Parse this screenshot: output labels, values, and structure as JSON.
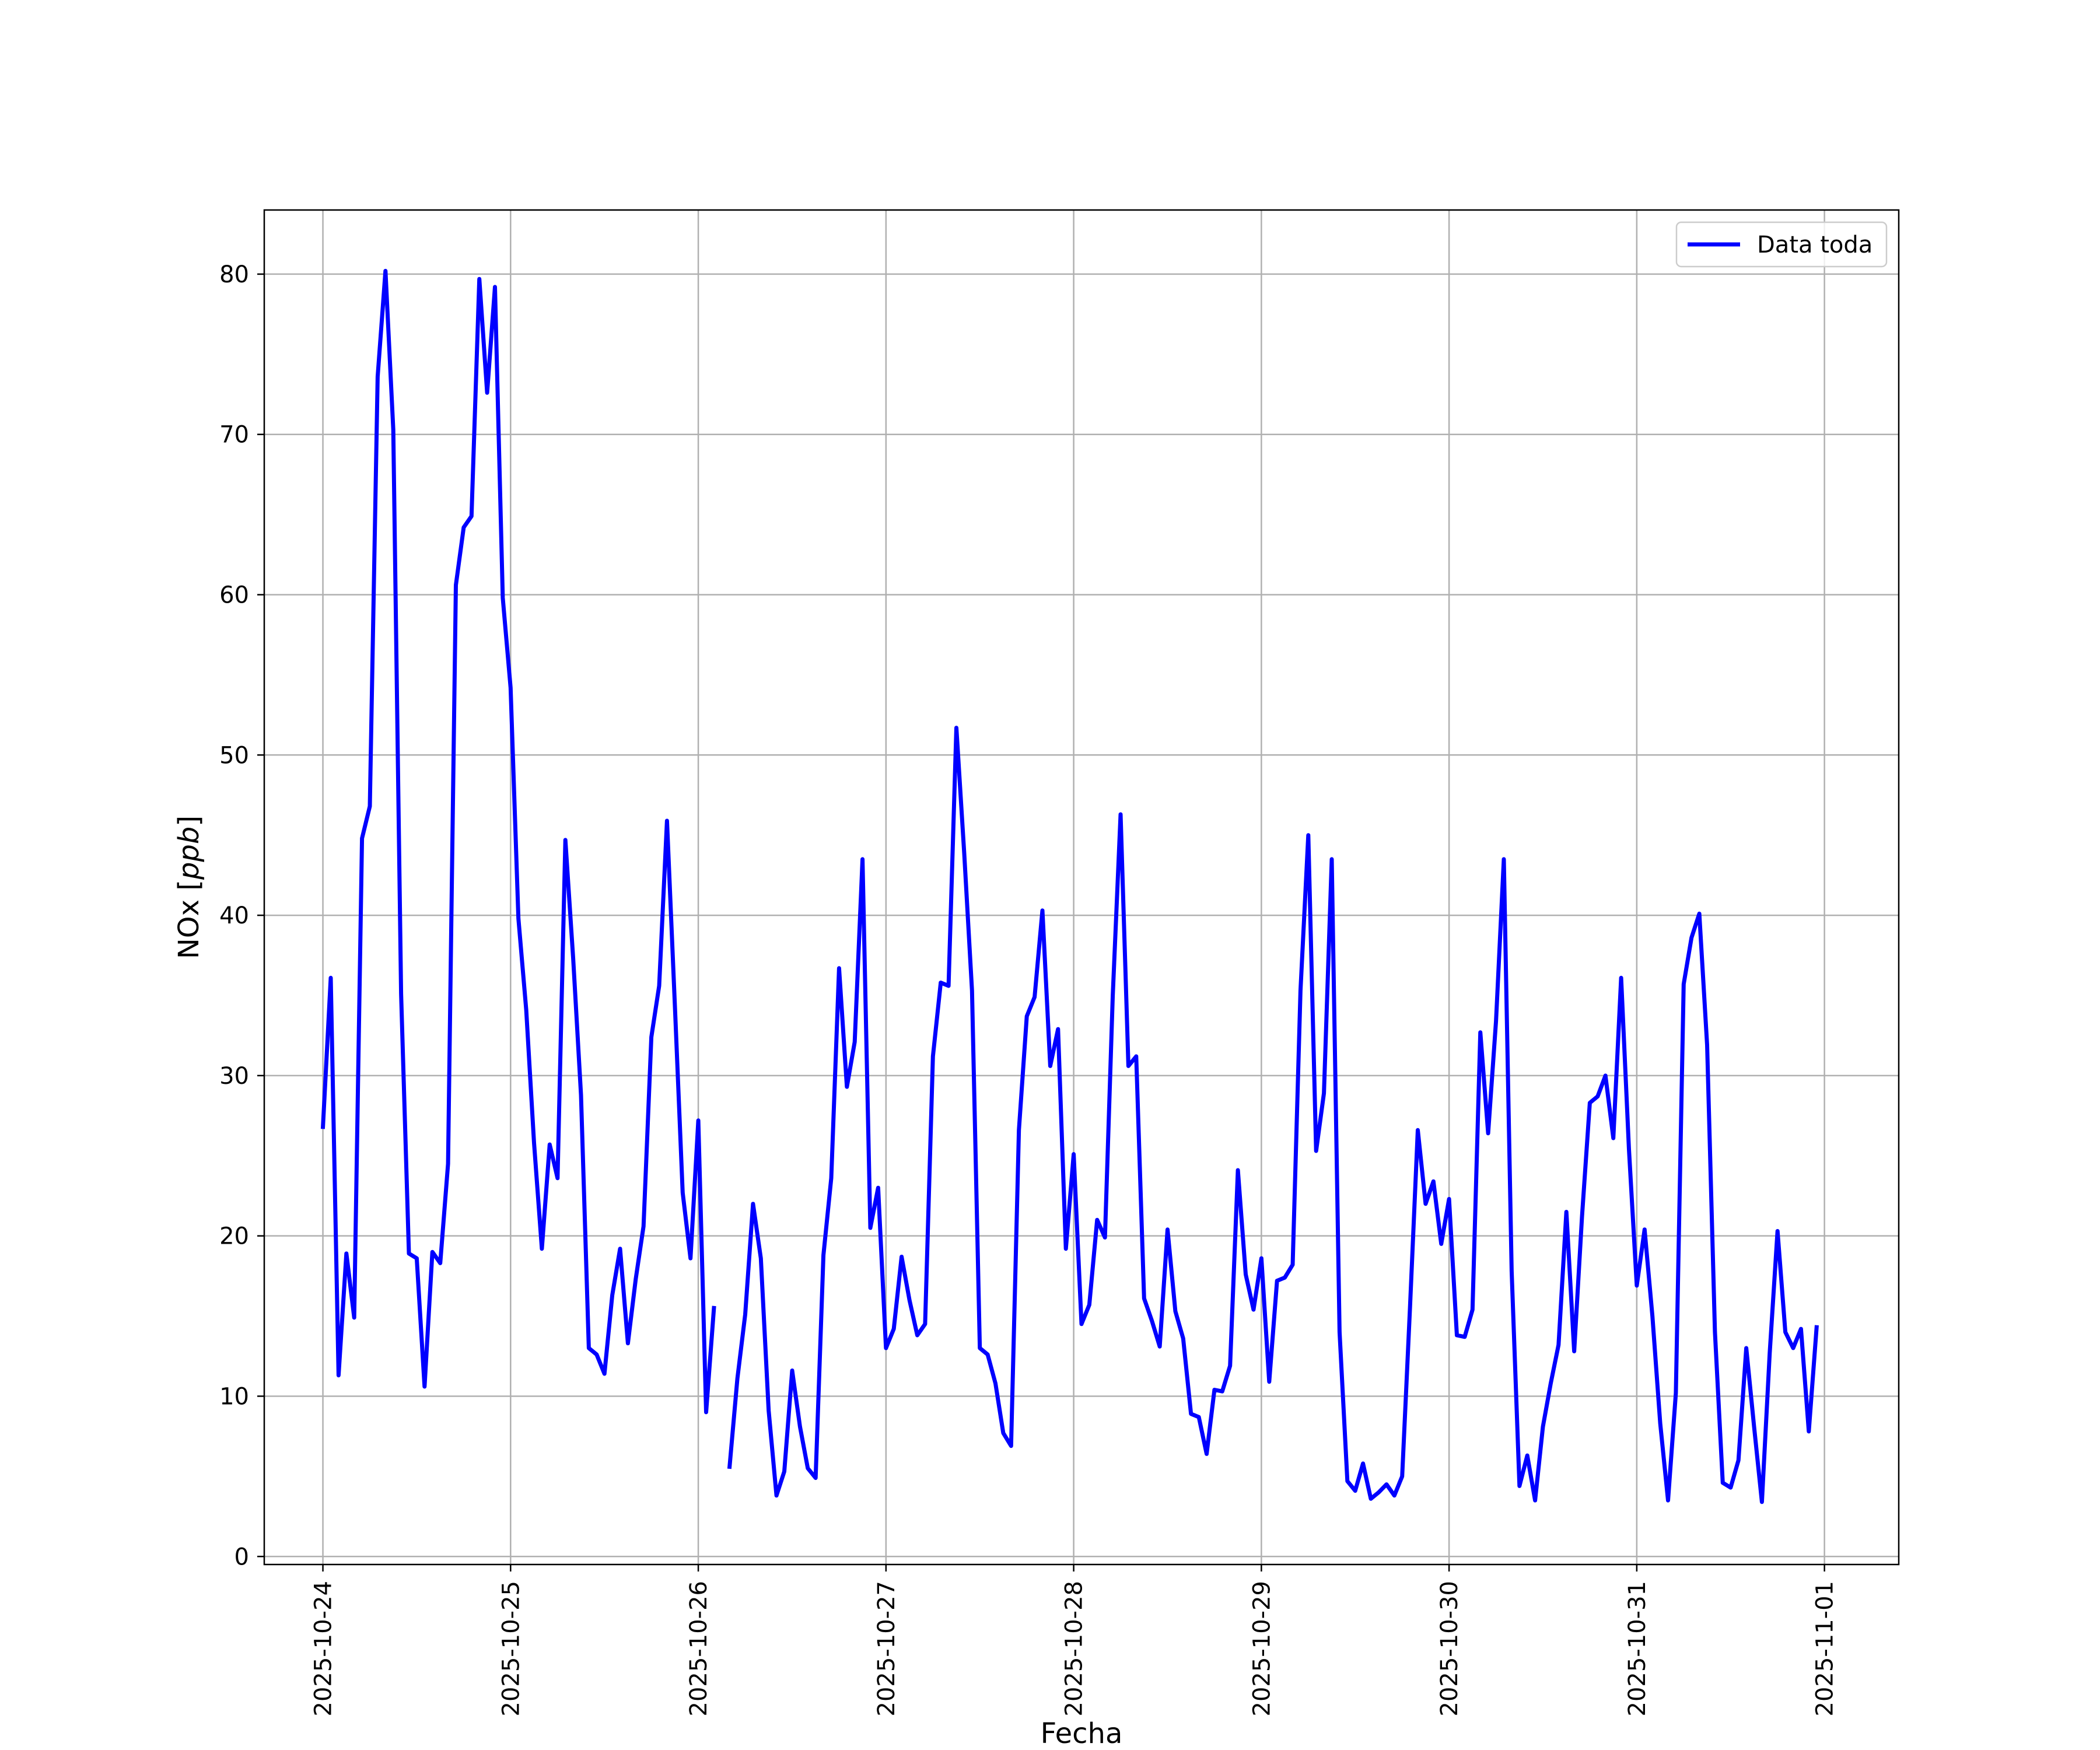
{
  "chart_data": {
    "type": "line",
    "title": "",
    "xlabel": "Fecha",
    "ylabel": "NOx [",
    "ylabel_unit": "ppb",
    "ylabel_close": "]",
    "x_ticks": [
      "2025-10-24",
      "2025-10-25",
      "2025-10-26",
      "2025-10-27",
      "2025-10-28",
      "2025-10-29",
      "2025-10-30",
      "2025-10-31",
      "2025-11-01"
    ],
    "y_ticks": [
      "0",
      "10",
      "20",
      "30",
      "40",
      "50",
      "60",
      "70",
      "80"
    ],
    "xlim": [
      "2025-10-23T16:30:00",
      "2025-11-01T09:30:00"
    ],
    "ylim": [
      -0.5,
      84
    ],
    "grid": true,
    "legend_position": "top-right",
    "series": [
      {
        "name": "Data toda",
        "color": "#0000ff",
        "start": "2025-10-24T00:00:00",
        "interval_hours": 1,
        "values": [
          26.8,
          36.1,
          11.3,
          18.9,
          14.9,
          44.8,
          46.8,
          73.6,
          80.2,
          70.3,
          35.1,
          18.9,
          18.6,
          10.6,
          19.0,
          18.3,
          24.5,
          60.6,
          64.2,
          64.9,
          79.7,
          72.6,
          79.2,
          59.8,
          54.2,
          39.8,
          34.1,
          25.8,
          19.2,
          25.7,
          23.6,
          44.7,
          37.3,
          28.8,
          13.0,
          12.6,
          11.4,
          16.3,
          19.2,
          13.3,
          17.3,
          20.6,
          32.4,
          35.6,
          45.9,
          34.4,
          22.7,
          18.6,
          27.2,
          9.0,
          15.5,
          null,
          5.6,
          11.1,
          15.1,
          22.0,
          18.6,
          9.1,
          3.8,
          5.3,
          11.6,
          8.1,
          5.5,
          4.9,
          18.8,
          23.6,
          36.7,
          29.3,
          32.1,
          43.5,
          20.5,
          23.0,
          13.0,
          14.2,
          18.7,
          16.0,
          13.8,
          14.5,
          31.2,
          35.8,
          35.6,
          51.7,
          43.9,
          35.3,
          13.0,
          12.6,
          10.8,
          7.7,
          6.9,
          26.6,
          33.7,
          34.9,
          40.3,
          30.6,
          32.9,
          19.2,
          25.1,
          14.5,
          15.7,
          21.0,
          19.9,
          35.0,
          46.3,
          30.6,
          31.2,
          16.1,
          14.7,
          13.1,
          20.4,
          15.3,
          13.6,
          8.9,
          8.7,
          6.4,
          10.4,
          10.3,
          11.9,
          24.1,
          17.6,
          15.4,
          18.6,
          10.9,
          17.2,
          17.4,
          18.2,
          35.3,
          45.0,
          25.3,
          28.9,
          43.5,
          14.0,
          4.7,
          4.1,
          5.8,
          3.6,
          4.0,
          4.5,
          3.8,
          5.0,
          15.5,
          26.6,
          22.0,
          23.4,
          19.5,
          22.3,
          13.8,
          13.7,
          15.4,
          32.7,
          26.4,
          33.4,
          43.5,
          17.8,
          4.4,
          6.3,
          3.5,
          8.1,
          10.8,
          13.2,
          21.5,
          12.8,
          21.2,
          28.3,
          28.7,
          30.0,
          26.1,
          36.1,
          25.4,
          16.9,
          20.4,
          15.0,
          8.3,
          3.5,
          10.2,
          35.7,
          38.6,
          40.1,
          31.9,
          14.0,
          4.6,
          4.3,
          6.0,
          13.0,
          8.1,
          3.4,
          12.7,
          20.3,
          14.0,
          13.0,
          14.2,
          7.8,
          14.3
        ]
      }
    ]
  }
}
